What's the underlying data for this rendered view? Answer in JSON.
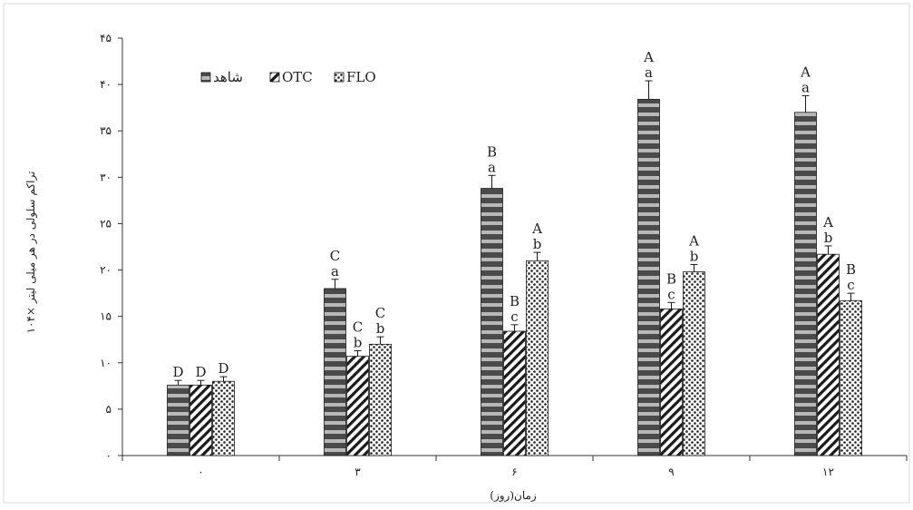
{
  "chart_data": {
    "type": "bar",
    "title": "",
    "xlabel": "زمان(روز)",
    "ylabel": "تراکم سلولی در هر میلی لیتر ×۱۰۴",
    "ylim": [
      0,
      45
    ],
    "y_ticks": [
      0,
      5,
      10,
      15,
      20,
      25,
      30,
      35,
      40,
      45
    ],
    "y_tick_labels": [
      "۰",
      "۵",
      "۱۰",
      "۱۵",
      "۲۰",
      "۲۵",
      "۳۰",
      "۳۵",
      "۴۰",
      "۴۵"
    ],
    "categories": [
      "۰",
      "۳",
      "۶",
      "۹",
      "۱۲"
    ],
    "grid": false,
    "legend_position": "top-left",
    "series": [
      {
        "name": "شاهد",
        "pattern": "horizontal-stripes",
        "values": [
          7.6,
          18.0,
          28.8,
          38.4,
          37.0
        ],
        "errors": [
          0.5,
          1.0,
          1.4,
          2.0,
          1.8
        ],
        "labels": [
          [
            "D"
          ],
          [
            "C",
            "a"
          ],
          [
            "B",
            "a"
          ],
          [
            "A",
            "a"
          ],
          [
            "A",
            "a"
          ]
        ]
      },
      {
        "name": "OTC",
        "pattern": "diagonal-hatch",
        "values": [
          7.6,
          10.7,
          13.4,
          15.8,
          21.7
        ],
        "errors": [
          0.5,
          0.6,
          0.7,
          0.7,
          0.9
        ],
        "labels": [
          [
            "D"
          ],
          [
            "C",
            "b"
          ],
          [
            "B",
            "c"
          ],
          [
            "B",
            "c"
          ],
          [
            "A",
            "b"
          ]
        ]
      },
      {
        "name": "FLO",
        "pattern": "dotted",
        "values": [
          8.0,
          12.0,
          21.0,
          19.8,
          16.7
        ],
        "errors": [
          0.5,
          0.8,
          0.9,
          0.8,
          0.8
        ],
        "labels": [
          [
            "D"
          ],
          [
            "C",
            "b"
          ],
          [
            "A",
            "b"
          ],
          [
            "A",
            "b"
          ],
          [
            "B",
            "c"
          ]
        ]
      }
    ]
  }
}
